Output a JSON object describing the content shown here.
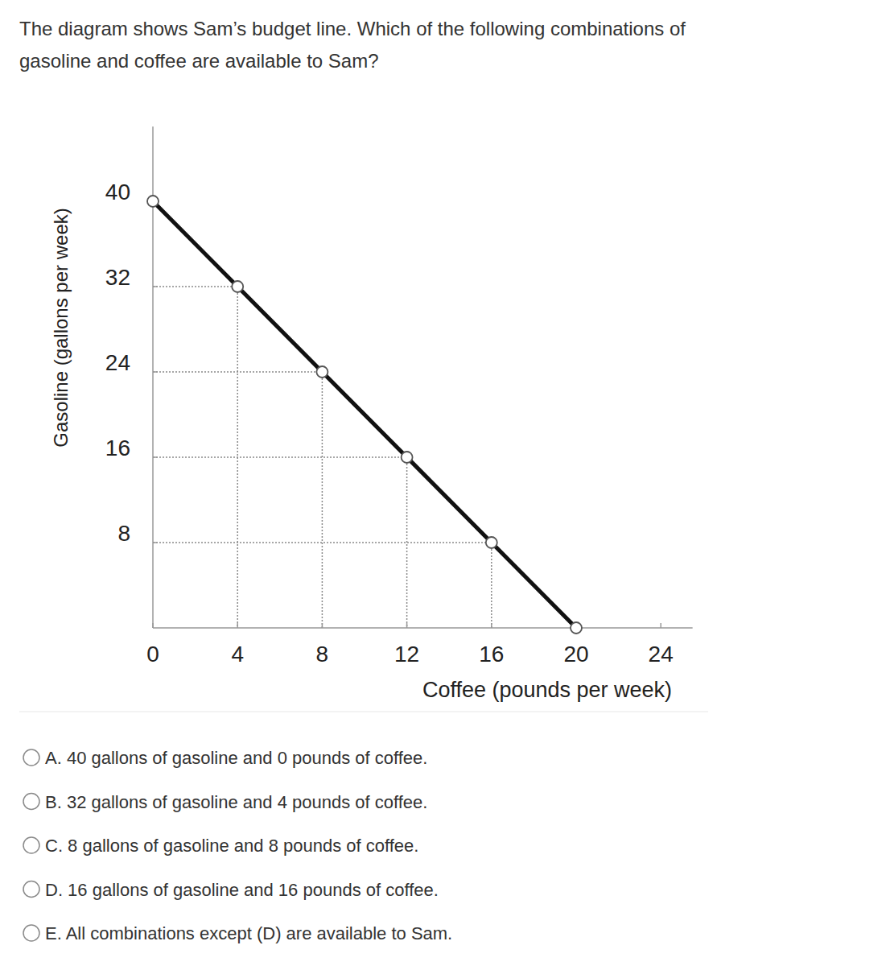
{
  "question_lines": [
    "The diagram shows Sam’s budget line. Which of the following combinations of",
    "gasoline and coffee are available to Sam?"
  ],
  "chart_data": {
    "type": "line",
    "x_label": "Coffee (pounds per week)",
    "y_label": "Gasoline (gallons per week)",
    "x": [
      0,
      4,
      8,
      12,
      16,
      20
    ],
    "values": [
      40,
      32,
      24,
      16,
      8,
      0
    ],
    "color": "#111111",
    "marker": "circle",
    "xlim": [
      0,
      25.5
    ],
    "ylim": [
      0,
      47
    ],
    "xticks": [
      0,
      4,
      8,
      12,
      16,
      20,
      24
    ],
    "yticks": [
      8,
      16,
      24,
      32,
      40
    ],
    "grid": false
  },
  "options": [
    "A. 40 gallons of gasoline and 0 pounds of coffee.",
    "B. 32 gallons of gasoline and 4 pounds of coffee.",
    "C. 8 gallons of gasoline and 8 pounds of coffee.",
    "D. 16 gallons of gasoline and 16 pounds of coffee.",
    "E. All combinations except (D) are available to Sam."
  ]
}
